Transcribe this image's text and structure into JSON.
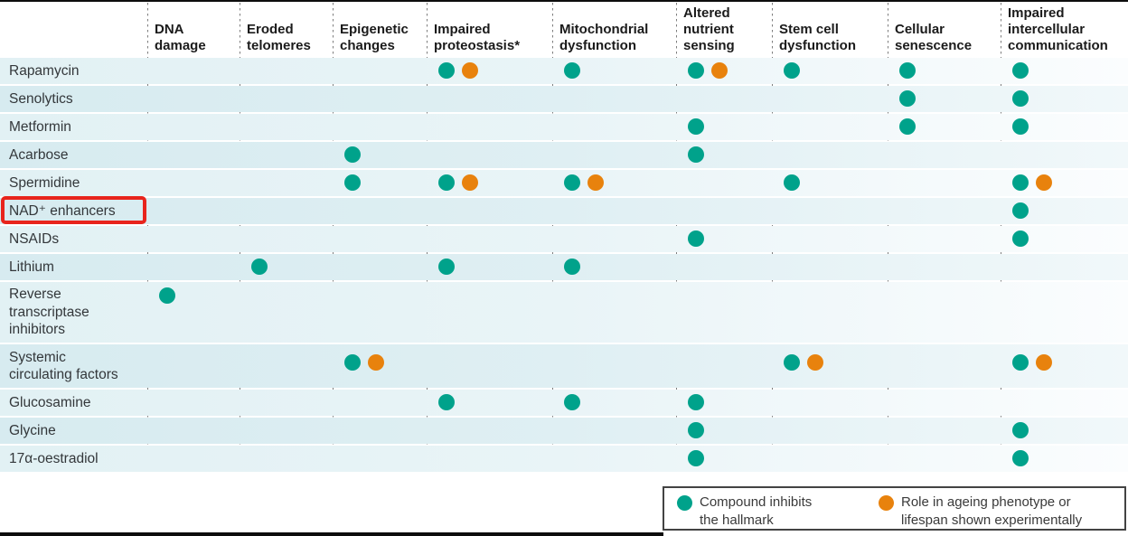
{
  "legend": {
    "items": [
      {
        "icon": "teal-dot",
        "icon_color": "#00A28B",
        "label": "Compound inhibits\nthe hallmark"
      },
      {
        "icon": "orange-dot",
        "icon_color": "#E8820D",
        "label": "Role in ageing phenotype or\nlifespan shown experimentally"
      }
    ]
  },
  "highlight": {
    "shape": "red-box",
    "target_row": "NAD⁺ enhancers",
    "color": "#E8241C"
  },
  "chart_data": {
    "type": "heatmap",
    "description": "Matrix of compounds (rows) versus hallmarks of ageing (columns). Teal dot: compound inhibits the hallmark. Orange dot: role in ageing phenotype or lifespan shown experimentally.",
    "columns": [
      {
        "name": "DNA damage",
        "label": "DNA\ndamage"
      },
      {
        "name": "Eroded telomeres",
        "label": "Eroded\ntelomeres"
      },
      {
        "name": "Epigenetic changes",
        "label": "Epigenetic\nchanges"
      },
      {
        "name": "Impaired proteostasis*",
        "label": "Impaired\nproteostasis*"
      },
      {
        "name": "Mitochondrial dysfunction",
        "label": "Mitochondrial\ndysfunction"
      },
      {
        "name": "Altered nutrient sensing",
        "label": "Altered\nnutrient\nsensing"
      },
      {
        "name": "Stem cell dysfunction",
        "label": "Stem cell\ndysfunction"
      },
      {
        "name": "Cellular senescence",
        "label": "Cellular\nsenescence"
      },
      {
        "name": "Impaired intercellular communication",
        "label": "Impaired\nintercellular\ncommunication"
      }
    ],
    "rows": [
      {
        "name": "Rapamycin",
        "label": "Rapamycin"
      },
      {
        "name": "Senolytics",
        "label": "Senolytics"
      },
      {
        "name": "Metformin",
        "label": "Metformin"
      },
      {
        "name": "Acarbose",
        "label": "Acarbose"
      },
      {
        "name": "Spermidine",
        "label": "Spermidine"
      },
      {
        "name": "NAD⁺ enhancers",
        "label": "NAD⁺ enhancers"
      },
      {
        "name": "NSAIDs",
        "label": "NSAIDs"
      },
      {
        "name": "Lithium",
        "label": "Lithium"
      },
      {
        "name": "Reverse transcriptase inhibitors",
        "label": "Reverse\ntranscriptase\ninhibitors"
      },
      {
        "name": "Systemic circulating factors",
        "label": "Systemic\ncirculating factors"
      },
      {
        "name": "Glucosamine",
        "label": "Glucosamine"
      },
      {
        "name": "Glycine",
        "label": "Glycine"
      },
      {
        "name": "17α-oestradiol",
        "label": "17α-oestradiol"
      }
    ],
    "matrix": [
      [
        0,
        0,
        0,
        2,
        1,
        2,
        1,
        1,
        1
      ],
      [
        0,
        0,
        0,
        0,
        0,
        0,
        0,
        1,
        1
      ],
      [
        0,
        0,
        0,
        0,
        0,
        1,
        0,
        1,
        1
      ],
      [
        0,
        0,
        1,
        0,
        0,
        1,
        0,
        0,
        0
      ],
      [
        0,
        0,
        1,
        2,
        2,
        0,
        1,
        0,
        2
      ],
      [
        0,
        0,
        0,
        0,
        0,
        0,
        0,
        0,
        1
      ],
      [
        0,
        0,
        0,
        0,
        0,
        1,
        0,
        0,
        1
      ],
      [
        0,
        1,
        0,
        1,
        1,
        0,
        0,
        0,
        0
      ],
      [
        1,
        0,
        0,
        0,
        0,
        0,
        0,
        0,
        0
      ],
      [
        0,
        0,
        2,
        0,
        0,
        0,
        2,
        0,
        2
      ],
      [
        0,
        0,
        0,
        1,
        1,
        1,
        0,
        0,
        0
      ],
      [
        0,
        0,
        0,
        0,
        0,
        1,
        0,
        0,
        1
      ],
      [
        0,
        0,
        0,
        0,
        0,
        1,
        0,
        0,
        1
      ]
    ],
    "value_key": {
      "0": "no dot",
      "1": "teal dot: compound inhibits the hallmark",
      "2": "teal + orange dots: inhibits the hallmark, and role in ageing phenotype or lifespan shown experimentally"
    },
    "colors": {
      "inhibits": "#00A28B",
      "experimental": "#E8820D"
    },
    "legend_position": "bottom-right",
    "grid": "dashed vertical column separators"
  }
}
